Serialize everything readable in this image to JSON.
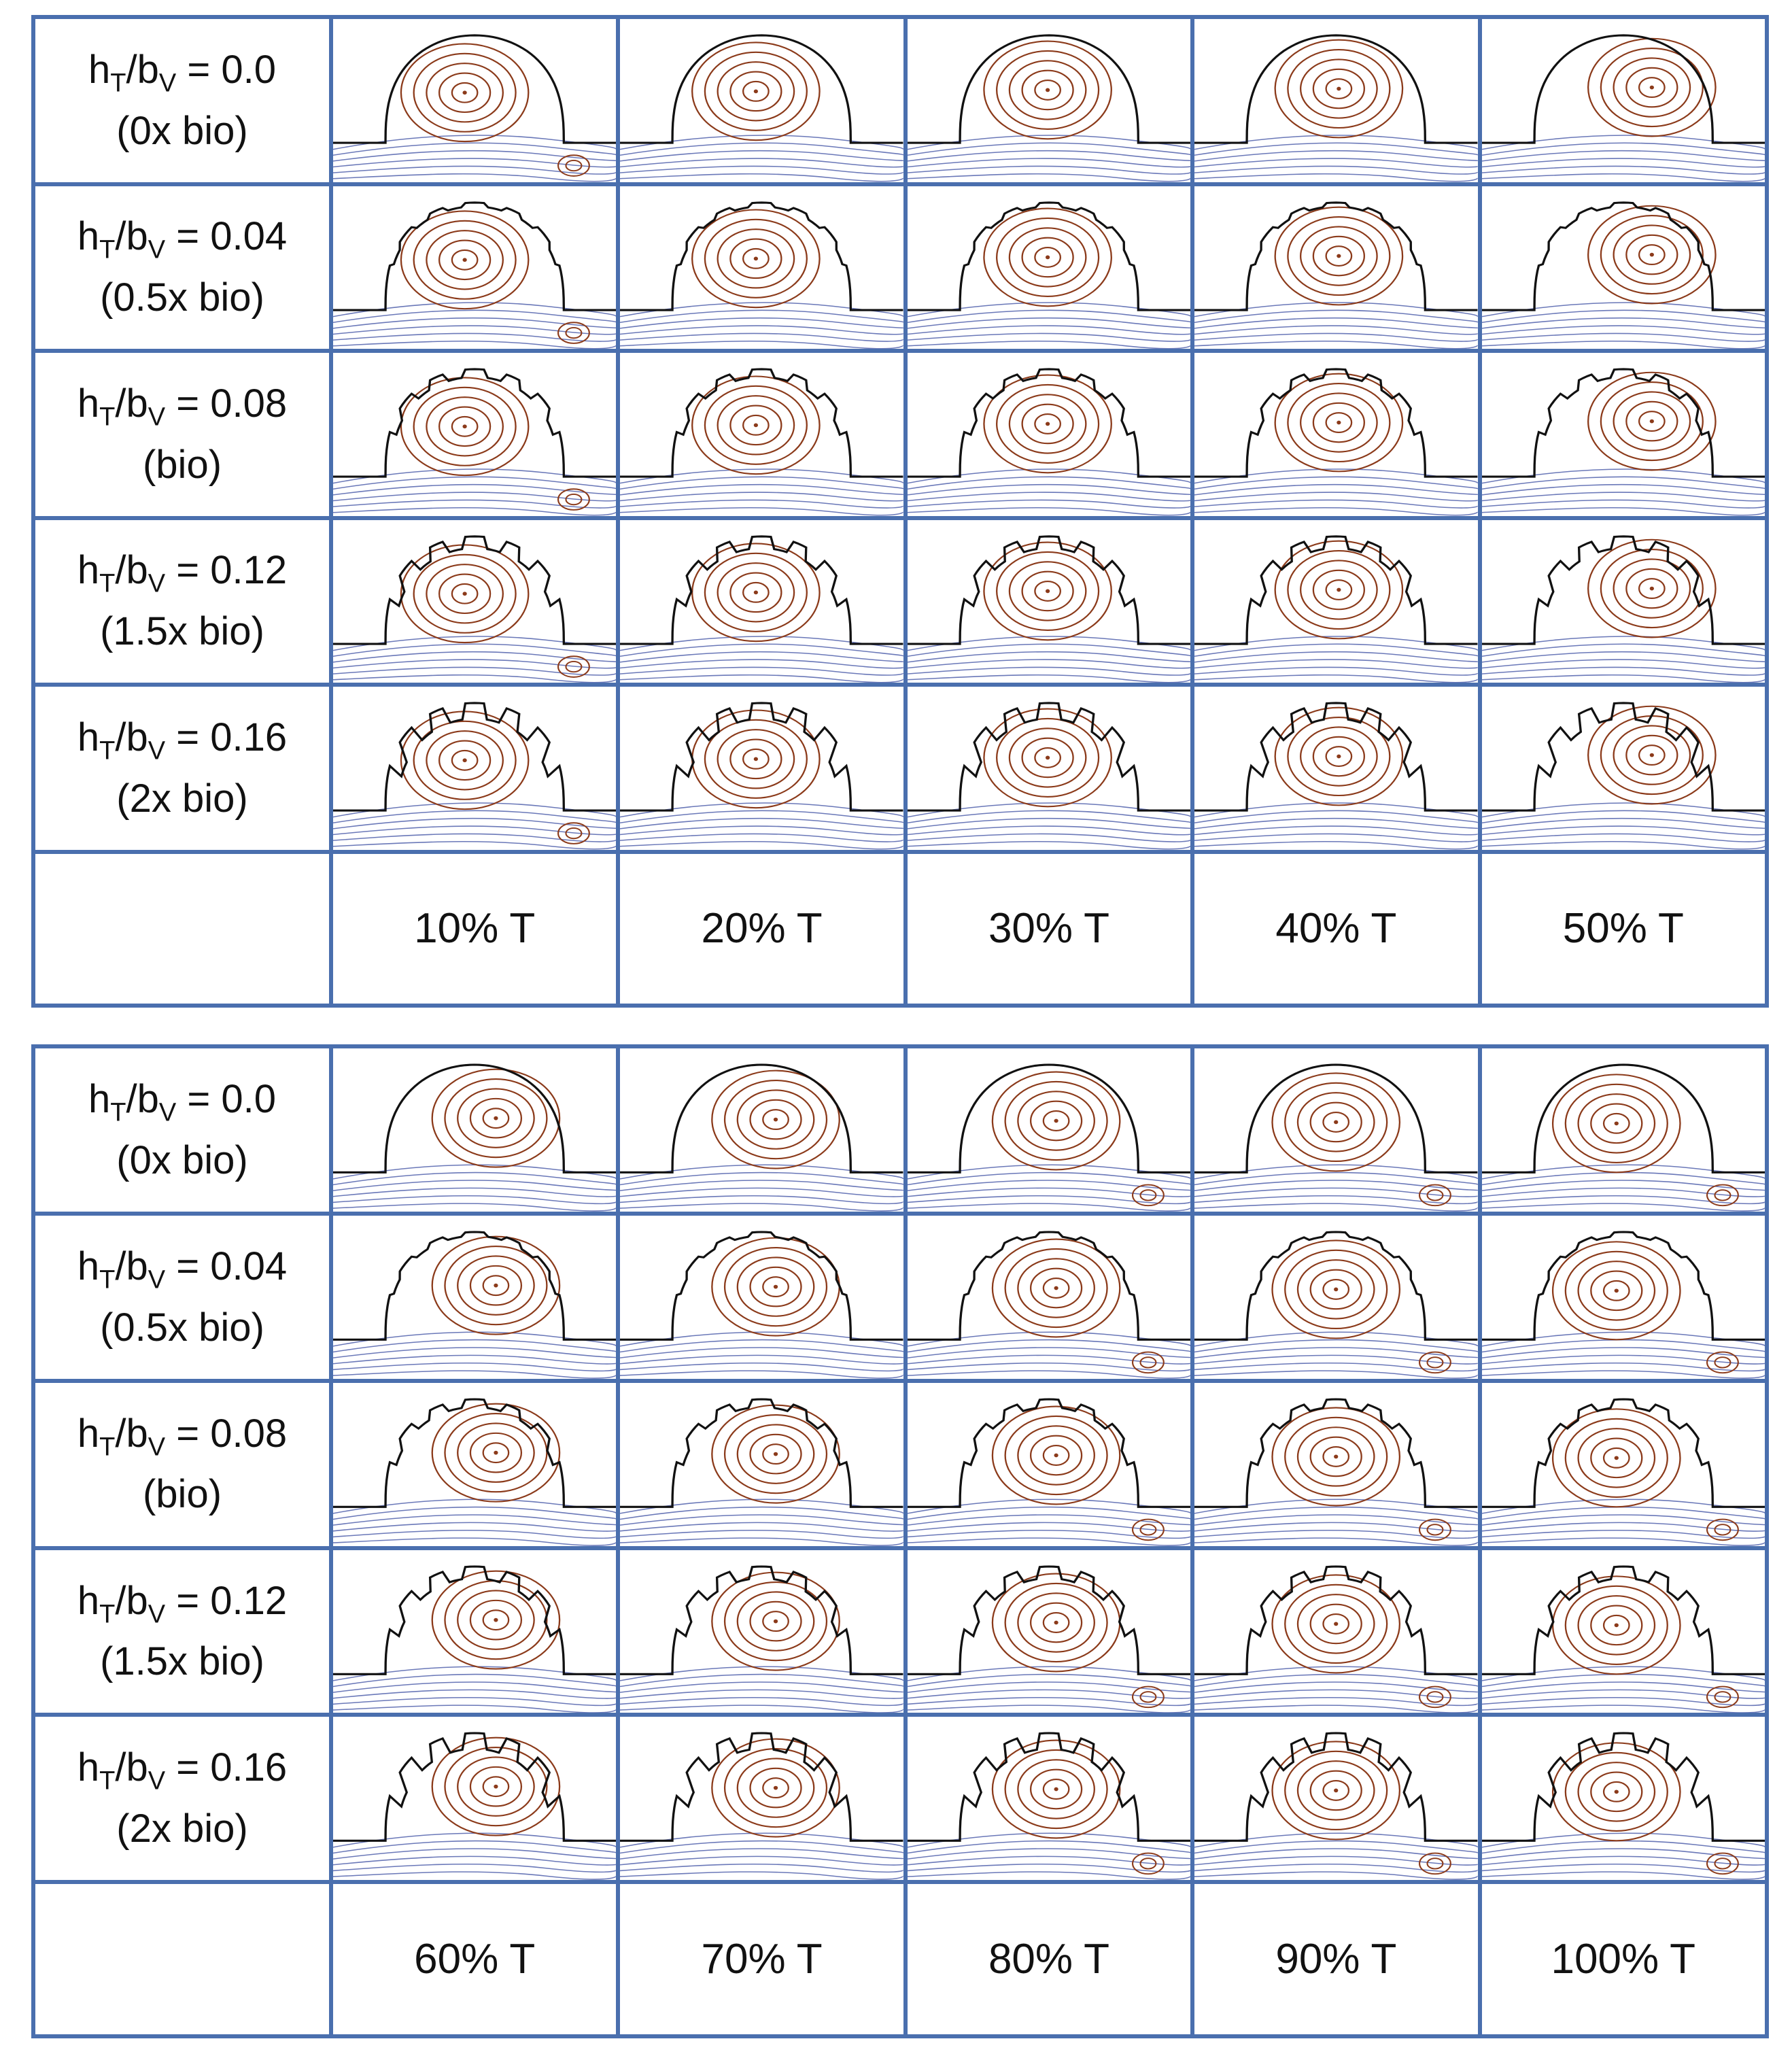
{
  "colors": {
    "border": "#4a6fae",
    "closed_streamlines": "#8b3a1a",
    "open_streamlines": "#6a78b8",
    "outline": "#111111"
  },
  "rows": [
    {
      "ratio_h": "h",
      "ratio_sub1": "T",
      "ratio_b": "/b",
      "ratio_sub2": "V",
      "ratio_value": " = 0.0",
      "bio": "(0x bio)",
      "teeth": 0
    },
    {
      "ratio_h": "h",
      "ratio_sub1": "T",
      "ratio_b": "/b",
      "ratio_sub2": "V",
      "ratio_value": " = 0.04",
      "bio": "(0.5x bio)",
      "teeth": 1
    },
    {
      "ratio_h": "h",
      "ratio_sub1": "T",
      "ratio_b": "/b",
      "ratio_sub2": "V",
      "ratio_value": " = 0.08",
      "bio": "(bio)",
      "teeth": 2
    },
    {
      "ratio_h": "h",
      "ratio_sub1": "T",
      "ratio_b": "/b",
      "ratio_sub2": "V",
      "ratio_value": " = 0.12",
      "bio": "(1.5x bio)",
      "teeth": 3
    },
    {
      "ratio_h": "h",
      "ratio_sub1": "T",
      "ratio_b": "/b",
      "ratio_sub2": "V",
      "ratio_value": " = 0.16",
      "bio": "(2x bio)",
      "teeth": 4
    }
  ],
  "top_times": [
    "10% T",
    "20% T",
    "30% T",
    "40% T",
    "50% T"
  ],
  "bottom_times": [
    "60% T",
    "70% T",
    "80% T",
    "90% T",
    "100% T"
  ]
}
